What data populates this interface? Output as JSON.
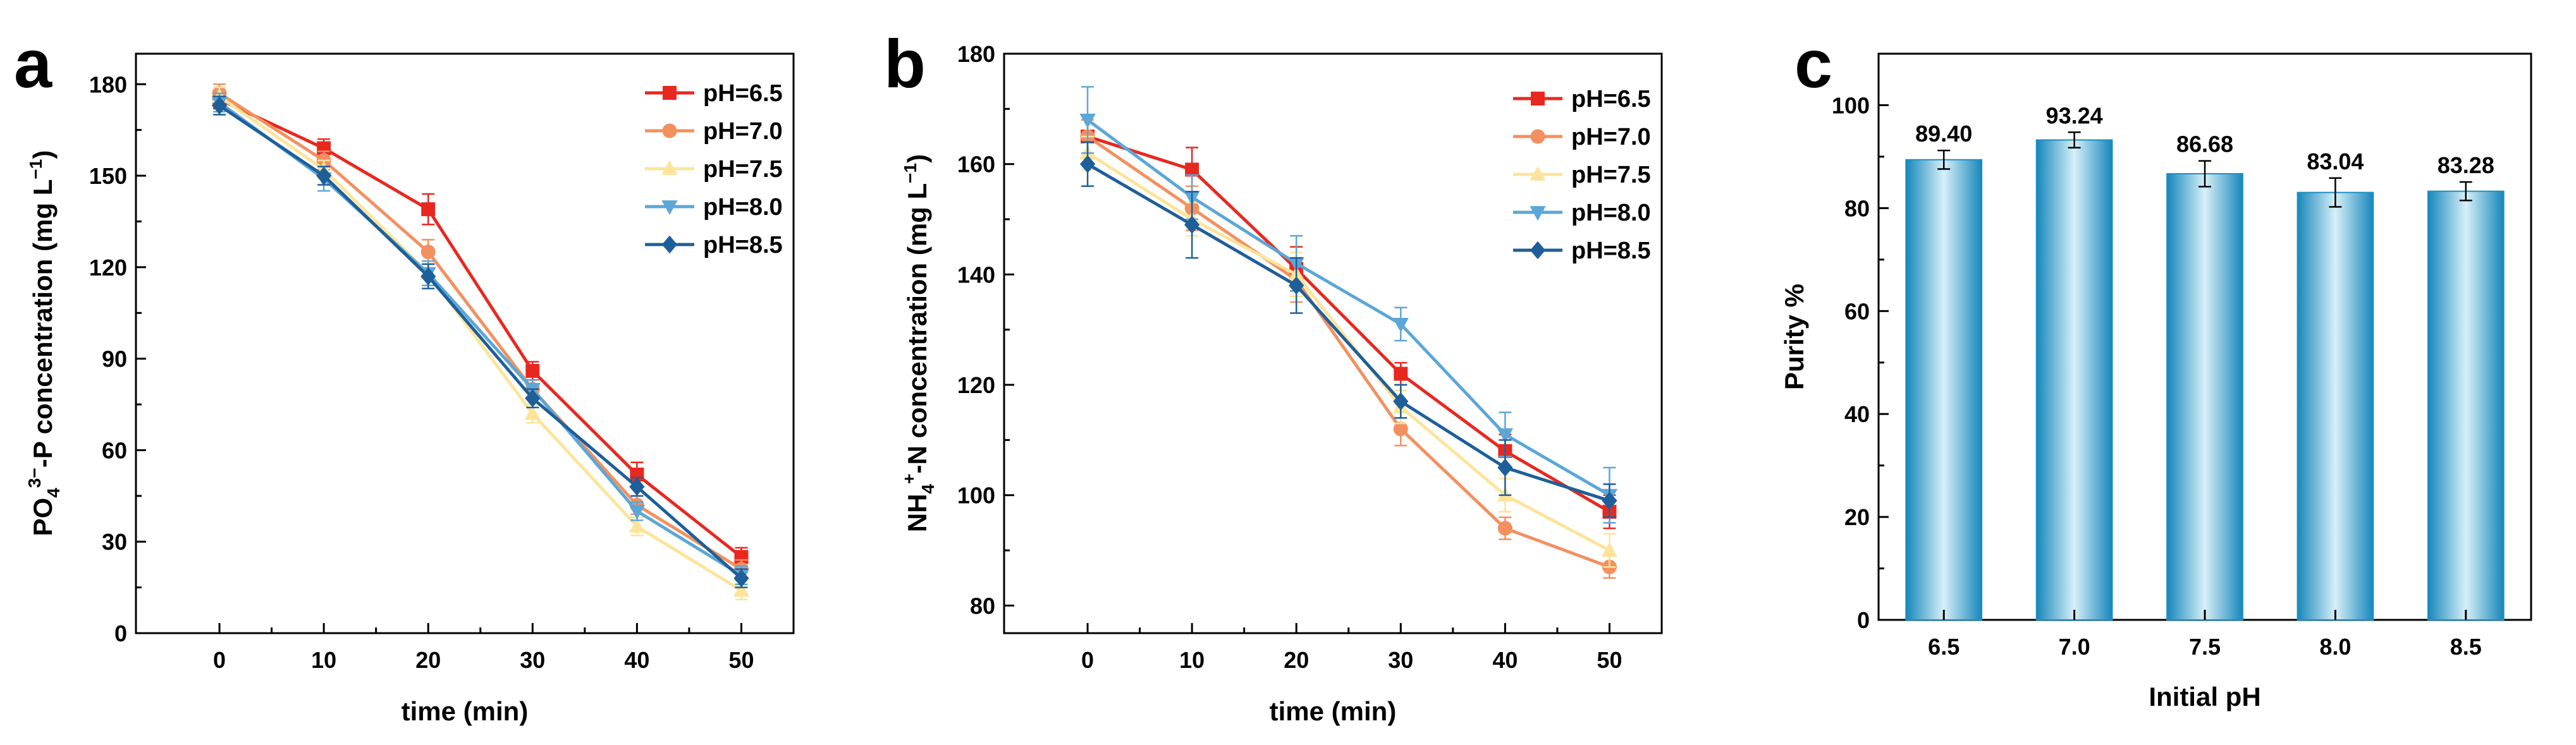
{
  "figure": {
    "panels": [
      "a",
      "b",
      "c"
    ],
    "colors": {
      "pH=6.5": "#e8281f",
      "pH=7.0": "#f39060",
      "pH=7.5": "#fde49a",
      "pH=8.0": "#5ba7d7",
      "pH=8.5": "#1e5f9a",
      "bar_dark": "#1a8fc2",
      "bar_light": "#cdeaf5"
    }
  },
  "chart_data": [
    {
      "panel": "a",
      "type": "line",
      "xlabel": "time (min)",
      "ylabel_parts": [
        "PO",
        "4",
        "3−",
        "-P concentration (mg L",
        "−1",
        ")"
      ],
      "x": [
        0,
        10,
        20,
        30,
        40,
        50
      ],
      "xticks": [
        "0",
        "10",
        "20",
        "30",
        "40",
        "50"
      ],
      "xlim": [
        -8,
        55
      ],
      "ylim": [
        0,
        190
      ],
      "yticks": [
        "0",
        "30",
        "60",
        "90",
        "120",
        "150",
        "180"
      ],
      "legend_position": "top-right",
      "series": [
        {
          "name": "pH=6.5",
          "marker": "square",
          "values": [
            175,
            159,
            139,
            86,
            52,
            25
          ],
          "errors": [
            3,
            3,
            5,
            3,
            4,
            3
          ]
        },
        {
          "name": "pH=7.0",
          "marker": "circle",
          "values": [
            177,
            155,
            125,
            80,
            42,
            21
          ],
          "errors": [
            3,
            3,
            4,
            3,
            3,
            3
          ]
        },
        {
          "name": "pH=7.5",
          "marker": "triangle-up",
          "values": [
            176,
            152,
            118,
            72,
            35,
            14
          ],
          "errors": [
            3,
            3,
            4,
            3,
            3,
            3
          ]
        },
        {
          "name": "pH=8.0",
          "marker": "triangle-down",
          "values": [
            174,
            149,
            118,
            80,
            40,
            19
          ],
          "errors": [
            3,
            4,
            4,
            3,
            3,
            3
          ]
        },
        {
          "name": "pH=8.5",
          "marker": "diamond",
          "values": [
            173,
            150,
            117,
            77,
            48,
            18
          ],
          "errors": [
            3,
            3,
            4,
            3,
            3,
            3
          ]
        }
      ]
    },
    {
      "panel": "b",
      "type": "line",
      "xlabel": "time (min)",
      "ylabel_parts": [
        "NH",
        "4",
        "+",
        "-N concentration (mg L",
        "−1",
        ")"
      ],
      "x": [
        0,
        10,
        20,
        30,
        40,
        50
      ],
      "xticks": [
        "0",
        "10",
        "20",
        "30",
        "40",
        "50"
      ],
      "xlim": [
        -8,
        55
      ],
      "ylim": [
        75,
        180
      ],
      "yticks": [
        "80",
        "100",
        "120",
        "140",
        "160",
        "180"
      ],
      "legend_position": "top-right",
      "series": [
        {
          "name": "pH=6.5",
          "marker": "square",
          "values": [
            165,
            159,
            141,
            122,
            108,
            97
          ],
          "errors": [
            3,
            4,
            4,
            2,
            3,
            3
          ]
        },
        {
          "name": "pH=7.0",
          "marker": "circle",
          "values": [
            165,
            152,
            139,
            112,
            94,
            87
          ],
          "errors": [
            3,
            4,
            4,
            3,
            2,
            2
          ]
        },
        {
          "name": "pH=7.5",
          "marker": "triangle-up",
          "values": [
            162,
            150,
            140,
            116,
            100,
            90
          ],
          "errors": [
            3,
            3,
            4,
            3,
            3,
            3
          ]
        },
        {
          "name": "pH=8.0",
          "marker": "triangle-down",
          "values": [
            168,
            154,
            142,
            131,
            111,
            100
          ],
          "errors": [
            6,
            4,
            5,
            3,
            4,
            5
          ]
        },
        {
          "name": "pH=8.5",
          "marker": "diamond",
          "values": [
            160,
            149,
            138,
            117,
            105,
            99
          ],
          "errors": [
            4,
            6,
            5,
            3,
            5,
            3
          ]
        }
      ]
    },
    {
      "panel": "c",
      "type": "bar",
      "xlabel": "Initial pH",
      "ylabel": "Purity %",
      "categories": [
        "6.5",
        "7.0",
        "7.5",
        "8.0",
        "8.5"
      ],
      "values": [
        89.4,
        93.24,
        86.68,
        83.04,
        83.28
      ],
      "data_labels": [
        "89.40",
        "93.24",
        "86.68",
        "83.04",
        "83.28"
      ],
      "errors": [
        1.8,
        1.5,
        2.5,
        2.8,
        1.8
      ],
      "ylim": [
        0,
        110
      ],
      "yticks": [
        "0",
        "20",
        "40",
        "60",
        "80",
        "100"
      ]
    }
  ]
}
